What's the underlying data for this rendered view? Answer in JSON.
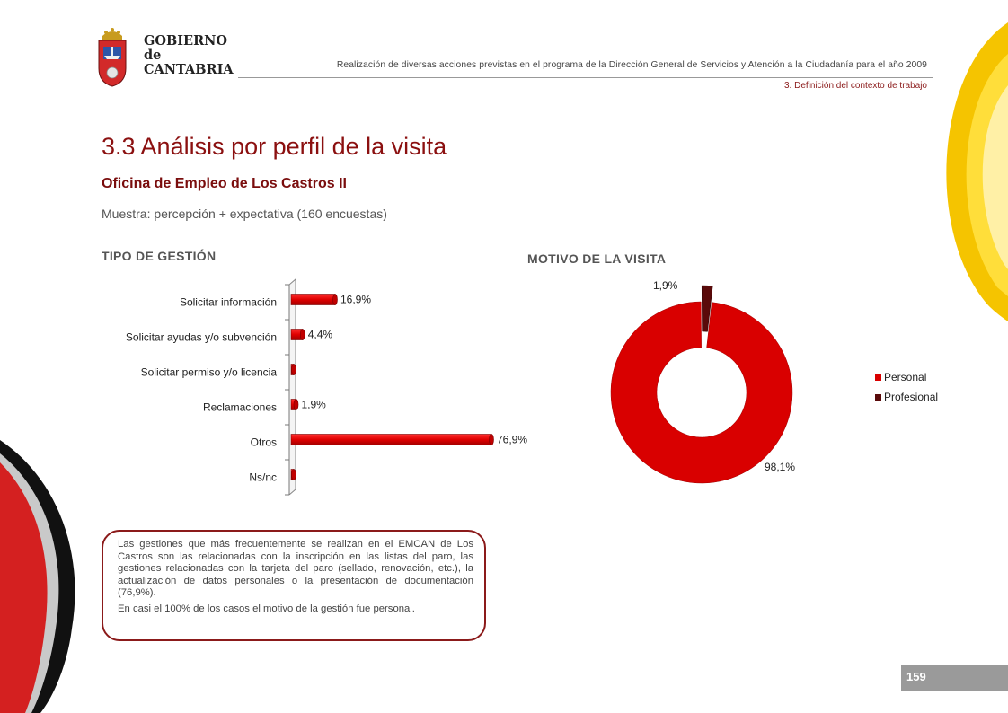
{
  "logo": {
    "name": "gobierno-de-cantabria-logo",
    "line1": "GOBIERNO",
    "line2": "de",
    "line3": "CANTABRIA"
  },
  "header": {
    "description": "Realización de diversas acciones previstas en el programa de la Dirección General de Servicios y Atención a la Ciudadanía para el año 2009",
    "section": "3. Definición del contexto de trabajo"
  },
  "page": {
    "title": "3.3 Análisis por perfil de la visita",
    "subtitle": "Oficina de Empleo de Los Castros II",
    "sample": "Muestra: percepción + expectativa (160 encuestas)",
    "number": "159"
  },
  "colors": {
    "accent": "#8b1010",
    "bar": "#e00000",
    "bar_dark": "#a00000",
    "pie_main": "#d90000",
    "pie_secondary": "#5a0a0a"
  },
  "chart_data": [
    {
      "type": "bar",
      "orientation": "horizontal",
      "title": "TIPO DE GESTIÓN",
      "categories": [
        "Solicitar información",
        "Solicitar ayudas y/o subvención",
        "Solicitar permiso y/o licencia",
        "Reclamaciones",
        "Otros",
        "Ns/nc"
      ],
      "values": [
        16.9,
        4.4,
        0,
        1.9,
        76.9,
        0
      ],
      "value_labels": [
        "16,9%",
        "4,4%",
        "",
        "1,9%",
        "76,9%",
        ""
      ],
      "grid": false
    },
    {
      "type": "pie",
      "variant": "doughnut",
      "title": "MOTIVO DE LA VISITA",
      "categories": [
        "Personal",
        "Profesional"
      ],
      "values": [
        98.1,
        1.9
      ],
      "value_labels": [
        "98,1%",
        "1,9%"
      ],
      "legend": "right"
    }
  ],
  "note": {
    "paragraph1": "Las gestiones que más frecuentemente se realizan en el EMCAN de Los Castros son las relacionadas con la inscripción en las listas del paro, las gestiones relacionadas con la tarjeta del paro (sellado, renovación, etc.), la actualización de datos personales o la presentación de documentación (76,9%).",
    "paragraph2": "En casi el 100% de los casos el motivo de la gestión fue personal."
  }
}
